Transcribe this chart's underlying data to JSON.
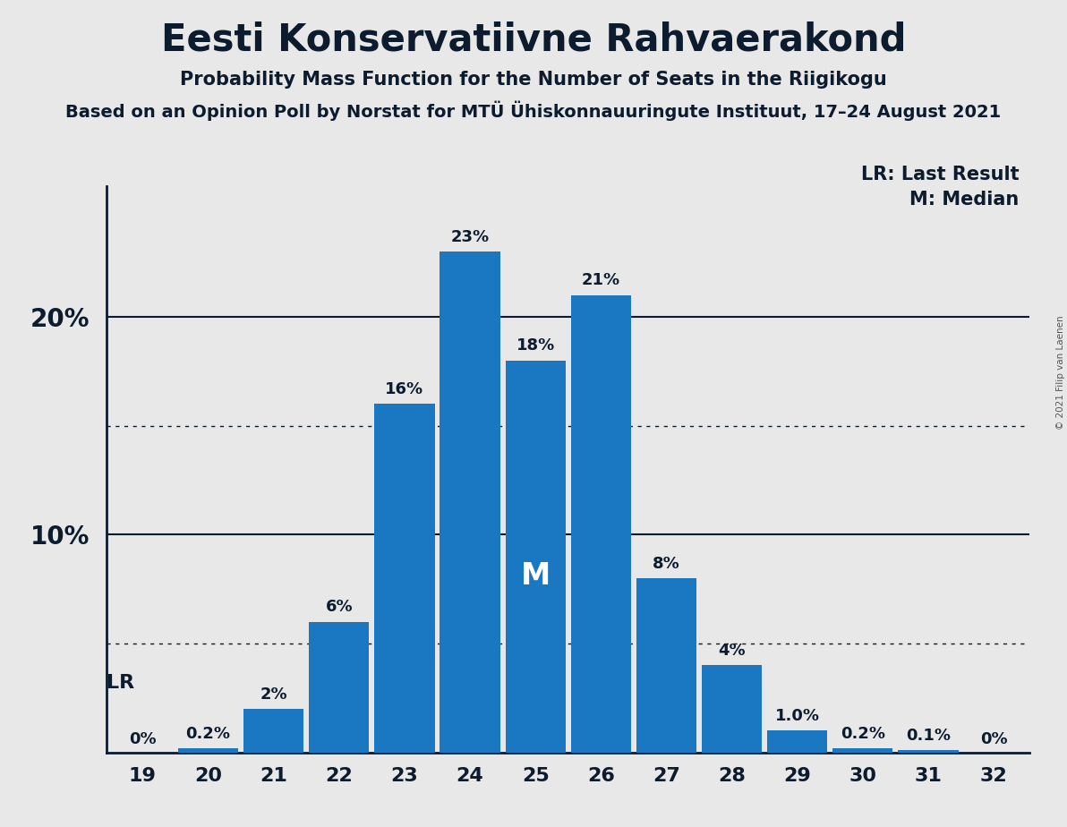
{
  "title": "Eesti Konservatiivne Rahvaerakond",
  "subtitle": "Probability Mass Function for the Number of Seats in the Riigikogu",
  "source_line": "Based on an Opinion Poll by Norstat for MTÜ Ühiskonnauuringute Instituut, 17–24 August 2021",
  "copyright_line": "© 2021 Filip van Laenen",
  "legend_lr": "LR: Last Result",
  "legend_m": "M: Median",
  "seats": [
    19,
    20,
    21,
    22,
    23,
    24,
    25,
    26,
    27,
    28,
    29,
    30,
    31,
    32
  ],
  "values": [
    0.0,
    0.2,
    2.0,
    6.0,
    16.0,
    23.0,
    18.0,
    21.0,
    8.0,
    4.0,
    1.0,
    0.2,
    0.1,
    0.0
  ],
  "labels": [
    "0%",
    "0.2%",
    "2%",
    "6%",
    "16%",
    "23%",
    "18%",
    "21%",
    "8%",
    "4%",
    "1.0%",
    "0.2%",
    "0.1%",
    "0%"
  ],
  "bar_color": "#1a78c2",
  "background_color": "#e8e8e8",
  "lr_seat": 19,
  "median_seat": 25,
  "ylim_max": 26.0,
  "major_yticks": [
    10,
    20
  ],
  "dotted_yticks": [
    5,
    15
  ],
  "title_fontsize": 30,
  "subtitle_fontsize": 15,
  "source_fontsize": 14,
  "bar_label_fontsize": 13,
  "axis_tick_fontsize": 16,
  "legend_fontsize": 15,
  "lr_label_fontsize": 16,
  "median_label_fontsize": 24,
  "ytick_label_fontsize": 20
}
